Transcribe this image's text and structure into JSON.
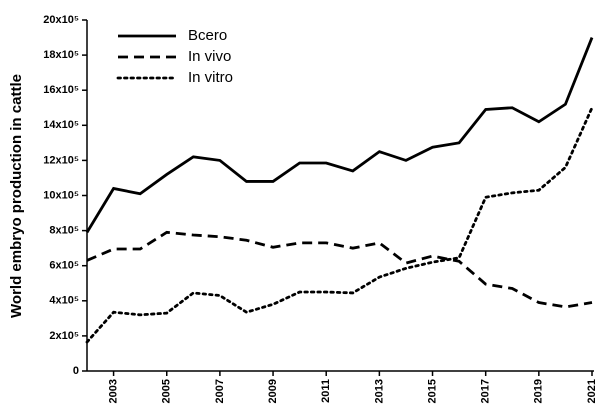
{
  "chart_data": {
    "type": "line",
    "y_label": "World embryo production in cattle",
    "x": [
      2002,
      2003,
      2004,
      2005,
      2006,
      2007,
      2008,
      2009,
      2010,
      2011,
      2012,
      2013,
      2014,
      2015,
      2016,
      2017,
      2018,
      2019,
      2020,
      2021
    ],
    "xlim": [
      2002,
      2021
    ],
    "xticks": [
      2003,
      2005,
      2007,
      2009,
      2011,
      2013,
      2015,
      2017,
      2019,
      2021
    ],
    "ylim": [
      0,
      2000000
    ],
    "yticks": [
      0,
      {
        "value": 200000,
        "label": "2x10⁵"
      },
      {
        "value": 400000,
        "label": "4x10⁵"
      },
      {
        "value": 600000,
        "label": "6x10⁵"
      },
      {
        "value": 800000,
        "label": "8x10⁵"
      },
      {
        "value": 1000000,
        "label": "10x10⁵"
      },
      {
        "value": 1200000,
        "label": "12x10⁵"
      },
      {
        "value": 1400000,
        "label": "14x10⁵"
      },
      {
        "value": 1600000,
        "label": "16x10⁵"
      },
      {
        "value": 1800000,
        "label": "18x10⁵"
      },
      {
        "value": 2000000,
        "label": "20x10⁵"
      }
    ],
    "legend": "upper left",
    "series": [
      {
        "name": "Bcero",
        "color": "#000000",
        "linestyle": "solid",
        "values": [
          790000,
          1040000,
          1010000,
          1120000,
          1220000,
          1200000,
          1080000,
          1080000,
          1185000,
          1185000,
          1140000,
          1250000,
          1200000,
          1275000,
          1300000,
          1490000,
          1500000,
          1420000,
          1520000,
          1900000
        ]
      },
      {
        "name": "In vivo",
        "color": "#000000",
        "linestyle": "dashed",
        "values": [
          630000,
          695000,
          695000,
          790000,
          775000,
          765000,
          745000,
          705000,
          730000,
          730000,
          700000,
          730000,
          615000,
          655000,
          625000,
          495000,
          470000,
          390000,
          365000,
          390000
        ]
      },
      {
        "name": "In vitro",
        "color": "#000000",
        "linestyle": "dotted",
        "values": [
          165000,
          335000,
          320000,
          330000,
          445000,
          430000,
          335000,
          380000,
          450000,
          450000,
          445000,
          535000,
          585000,
          620000,
          645000,
          990000,
          1015000,
          1030000,
          1160000,
          1500000
        ]
      }
    ]
  }
}
